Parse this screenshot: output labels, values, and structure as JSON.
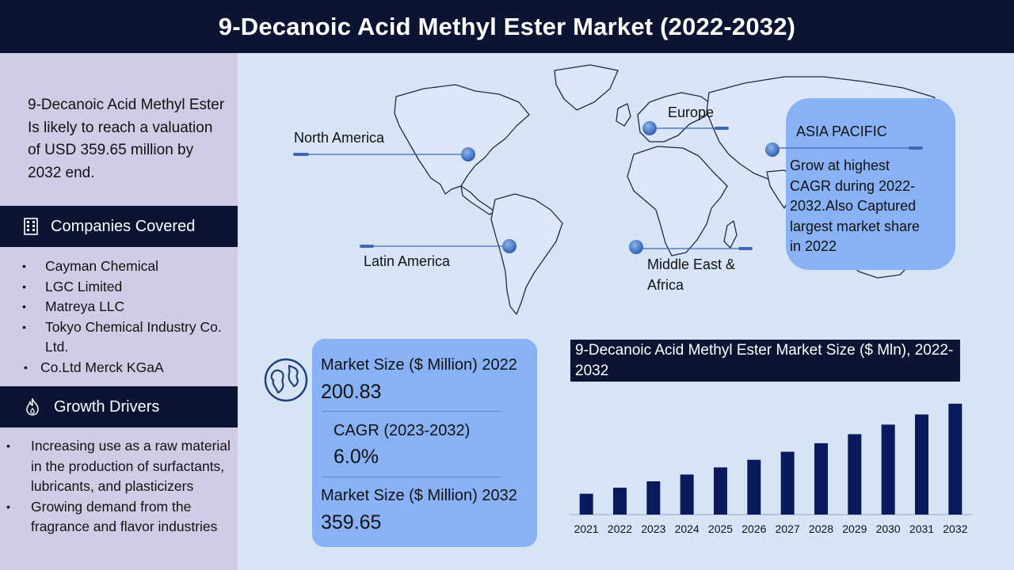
{
  "header": {
    "title": "9-Decanoic Acid Methyl Ester Market (2022-2032)"
  },
  "sidebar": {
    "intro": "9-Decanoic Acid Methyl Ester Is likely to reach a valuation of USD 359.65 million by 2032 end.",
    "companies_title": "Companies Covered",
    "companies": [
      "Cayman Chemical",
      "LGC Limited",
      "Matreya LLC",
      "Tokyo Chemical Industry Co. Ltd.",
      "Co.Ltd Merck KGaA"
    ],
    "drivers_title": "Growth Drivers",
    "drivers": [
      "Increasing use as a raw material in the production of surfactants, lubricants, and plasticizers",
      "Growing demand from the fragrance and flavor industries"
    ]
  },
  "map": {
    "regions": {
      "north_america": "North America",
      "europe": "Europe",
      "asia_pacific": "ASIA PACIFIC",
      "latin_america": "Latin America",
      "mea": "Middle East & Africa"
    },
    "asia_pacific_text": "Grow at highest CAGR during 2022-2032.Also Captured largest market share in 2022"
  },
  "stats": {
    "size_2022_label": "Market Size ($ Million) 2022",
    "size_2022_value": "200.83",
    "cagr_label": "CAGR (2023-2032)",
    "cagr_value": "6.0%",
    "size_2032_label": "Market Size ($ Million) 2032",
    "size_2032_value": "359.65"
  },
  "colors": {
    "navy": "#0b1433",
    "bar": "#0a1a5c",
    "accent_blue": "#88b2f5",
    "sidebar_bg": "#cfcde5",
    "map_bg": "#d6e4f5"
  },
  "chart_data": {
    "type": "bar",
    "title": "9-Decanoic Acid Methyl Ester Market Size ($ Mln), 2022-2032",
    "categories": [
      "2021",
      "2022",
      "2023",
      "2024",
      "2025",
      "2026",
      "2027",
      "2028",
      "2029",
      "2030",
      "2031",
      "2032"
    ],
    "values": [
      189.4,
      200.83,
      212.9,
      225.7,
      239.2,
      253.6,
      268.8,
      284.9,
      302.0,
      320.1,
      339.3,
      359.65
    ],
    "ylim": [
      150,
      370
    ],
    "xlabel": "",
    "ylabel": "",
    "grid": false
  }
}
